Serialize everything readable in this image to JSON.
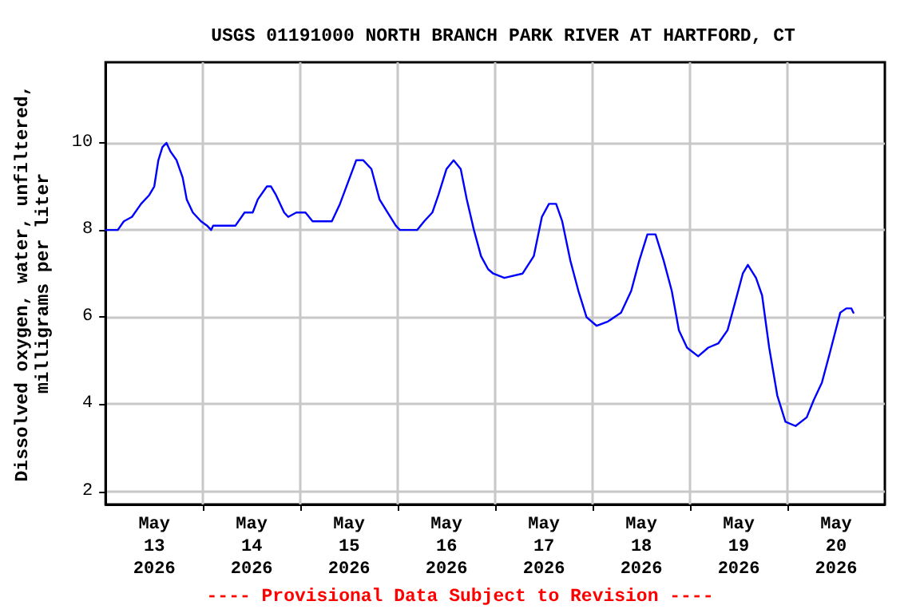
{
  "chart_data": {
    "type": "line",
    "title": "USGS 01191000 NORTH BRANCH PARK RIVER AT HARTFORD, CT",
    "ylabel": "Dissolved oxygen, water, unfiltered,\nmilligrams per liter",
    "annotations": [
      "---- Provisional Data Subject to Revision ----"
    ],
    "x": [
      "2026-05-13T00:00",
      "2026-05-13T03:00",
      "2026-05-13T04:30",
      "2026-05-13T06:30",
      "2026-05-13T08:45",
      "2026-05-13T10:45",
      "2026-05-13T12:00",
      "2026-05-13T13:00",
      "2026-05-13T14:00",
      "2026-05-13T15:00",
      "2026-05-13T16:00",
      "2026-05-13T17:30",
      "2026-05-13T19:00",
      "2026-05-13T20:00",
      "2026-05-13T21:30",
      "2026-05-13T23:30",
      "2026-05-14T01:00",
      "2026-05-14T02:00",
      "2026-05-14T02:30",
      "2026-05-14T08:00",
      "2026-05-14T10:15",
      "2026-05-14T12:15",
      "2026-05-14T13:30",
      "2026-05-14T15:45",
      "2026-05-14T16:45",
      "2026-05-14T18:00",
      "2026-05-14T20:00",
      "2026-05-14T21:00",
      "2026-05-14T23:00",
      "2026-05-15T01:15",
      "2026-05-15T03:00",
      "2026-05-15T07:45",
      "2026-05-15T09:45",
      "2026-05-15T11:45",
      "2026-05-15T13:45",
      "2026-05-15T15:30",
      "2026-05-15T17:30",
      "2026-05-15T19:30",
      "2026-05-15T21:30",
      "2026-05-15T23:30",
      "2026-05-16T00:30",
      "2026-05-16T04:45",
      "2026-05-16T06:30",
      "2026-05-16T08:30",
      "2026-05-16T10:00",
      "2026-05-16T12:00",
      "2026-05-16T13:45",
      "2026-05-16T15:30",
      "2026-05-16T17:00",
      "2026-05-16T18:45",
      "2026-05-16T20:30",
      "2026-05-16T22:15",
      "2026-05-16T23:30",
      "2026-05-17T02:15",
      "2026-05-17T06:45",
      "2026-05-17T09:30",
      "2026-05-17T11:30",
      "2026-05-17T13:15",
      "2026-05-17T15:00",
      "2026-05-17T16:30",
      "2026-05-17T18:30",
      "2026-05-17T20:30",
      "2026-05-17T22:30",
      "2026-05-18T01:00",
      "2026-05-18T03:45",
      "2026-05-18T07:00",
      "2026-05-18T09:30",
      "2026-05-18T11:30",
      "2026-05-18T13:30",
      "2026-05-18T15:30",
      "2026-05-18T17:30",
      "2026-05-18T19:30",
      "2026-05-18T21:15",
      "2026-05-18T23:15",
      "2026-05-19T02:00",
      "2026-05-19T04:30",
      "2026-05-19T07:00",
      "2026-05-19T09:15",
      "2026-05-19T11:00",
      "2026-05-19T13:00",
      "2026-05-19T14:15",
      "2026-05-19T16:15",
      "2026-05-19T17:45",
      "2026-05-19T19:30",
      "2026-05-19T21:30",
      "2026-05-19T23:30",
      "2026-05-20T02:00",
      "2026-05-20T04:45",
      "2026-05-20T06:30",
      "2026-05-20T08:30",
      "2026-05-20T10:30",
      "2026-05-20T13:00",
      "2026-05-20T14:30",
      "2026-05-20T15:45",
      "2026-05-20T16:15"
    ],
    "series": [
      {
        "color": "#0000ff",
        "values": [
          8.0,
          8.0,
          8.2,
          8.3,
          8.6,
          8.8,
          9.0,
          9.6,
          9.9,
          10.0,
          9.8,
          9.6,
          9.2,
          8.7,
          8.4,
          8.2,
          8.1,
          8.0,
          8.1,
          8.1,
          8.4,
          8.4,
          8.7,
          9.0,
          9.0,
          8.8,
          8.4,
          8.3,
          8.4,
          8.4,
          8.2,
          8.2,
          8.6,
          9.1,
          9.6,
          9.6,
          9.4,
          8.7,
          8.4,
          8.1,
          8.0,
          8.0,
          8.2,
          8.4,
          8.8,
          9.4,
          9.6,
          9.4,
          8.7,
          8.0,
          7.4,
          7.1,
          7.0,
          6.9,
          7.0,
          7.4,
          8.3,
          8.6,
          8.6,
          8.2,
          7.3,
          6.6,
          6.0,
          5.8,
          5.9,
          6.1,
          6.6,
          7.3,
          7.9,
          7.9,
          7.3,
          6.6,
          5.7,
          5.3,
          5.1,
          5.3,
          5.4,
          5.7,
          6.3,
          7.0,
          7.2,
          6.9,
          6.5,
          5.3,
          4.2,
          3.6,
          3.5,
          3.7,
          4.1,
          4.5,
          5.2,
          6.1,
          6.2,
          6.2,
          6.1
        ]
      }
    ],
    "xlim": [
      "2026-05-13T00:00",
      "2026-05-21T00:00"
    ],
    "xticks": [
      {
        "value": "2026-05-13T12:00",
        "label": "May\n13\n2026"
      },
      {
        "value": "2026-05-14T12:00",
        "label": "May\n14\n2026"
      },
      {
        "value": "2026-05-15T12:00",
        "label": "May\n15\n2026"
      },
      {
        "value": "2026-05-16T12:00",
        "label": "May\n16\n2026"
      },
      {
        "value": "2026-05-17T12:00",
        "label": "May\n17\n2026"
      },
      {
        "value": "2026-05-18T12:00",
        "label": "May\n18\n2026"
      },
      {
        "value": "2026-05-19T12:00",
        "label": "May\n19\n2026"
      },
      {
        "value": "2026-05-20T12:00",
        "label": "May\n20\n2026"
      },
      {
        "value": "2026-05-14T00:00",
        "label": null
      },
      {
        "value": "2026-05-15T00:00",
        "label": null
      },
      {
        "value": "2026-05-16T00:00",
        "label": null
      },
      {
        "value": "2026-05-17T00:00",
        "label": null
      },
      {
        "value": "2026-05-18T00:00",
        "label": null
      },
      {
        "value": "2026-05-19T00:00",
        "label": null
      },
      {
        "value": "2026-05-20T00:00",
        "label": null
      }
    ],
    "ylim": [
      1.7,
      11.85
    ],
    "yticks": [
      2,
      4,
      6,
      8,
      10
    ],
    "grid": true,
    "marker": "none",
    "line_style": "solid"
  }
}
